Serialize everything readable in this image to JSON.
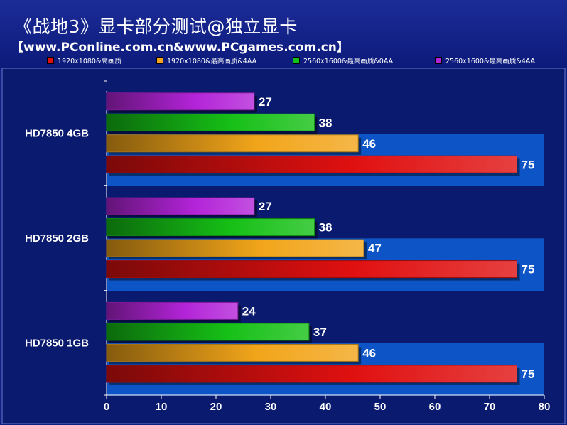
{
  "header": {
    "title": "《战地3》显卡部分测试@独立显卡",
    "subtitle": "【www.PConline.com.cn&www.PCgames.com.cn】"
  },
  "colors": {
    "background": "#0f1f83",
    "plot_background": "#0a1a6e",
    "band": "#0d55c6",
    "axis": "#ffffff"
  },
  "chart_data": {
    "type": "bar",
    "orientation": "horizontal",
    "categories": [
      "HD7850 4GB",
      "HD7850 2GB",
      "HD7850 1GB"
    ],
    "series": [
      {
        "name": "1920x1080&高画质",
        "color": "#e01010",
        "values": [
          75,
          75,
          75
        ]
      },
      {
        "name": "1920x1080&最高画质&4AA",
        "color": "#f2a51a",
        "values": [
          46,
          47,
          46
        ]
      },
      {
        "name": "2560x1600&最高画质&0AA",
        "color": "#16c016",
        "values": [
          38,
          38,
          37
        ]
      },
      {
        "name": "2560x1600&最高画质&4AA",
        "color": "#b324d8",
        "values": [
          27,
          27,
          24
        ]
      }
    ],
    "xlim": [
      0,
      80
    ],
    "xticks": [
      0,
      10,
      20,
      30,
      40,
      50,
      60,
      70,
      80
    ],
    "legend_position": "top",
    "grid": false,
    "data_labels": true
  }
}
